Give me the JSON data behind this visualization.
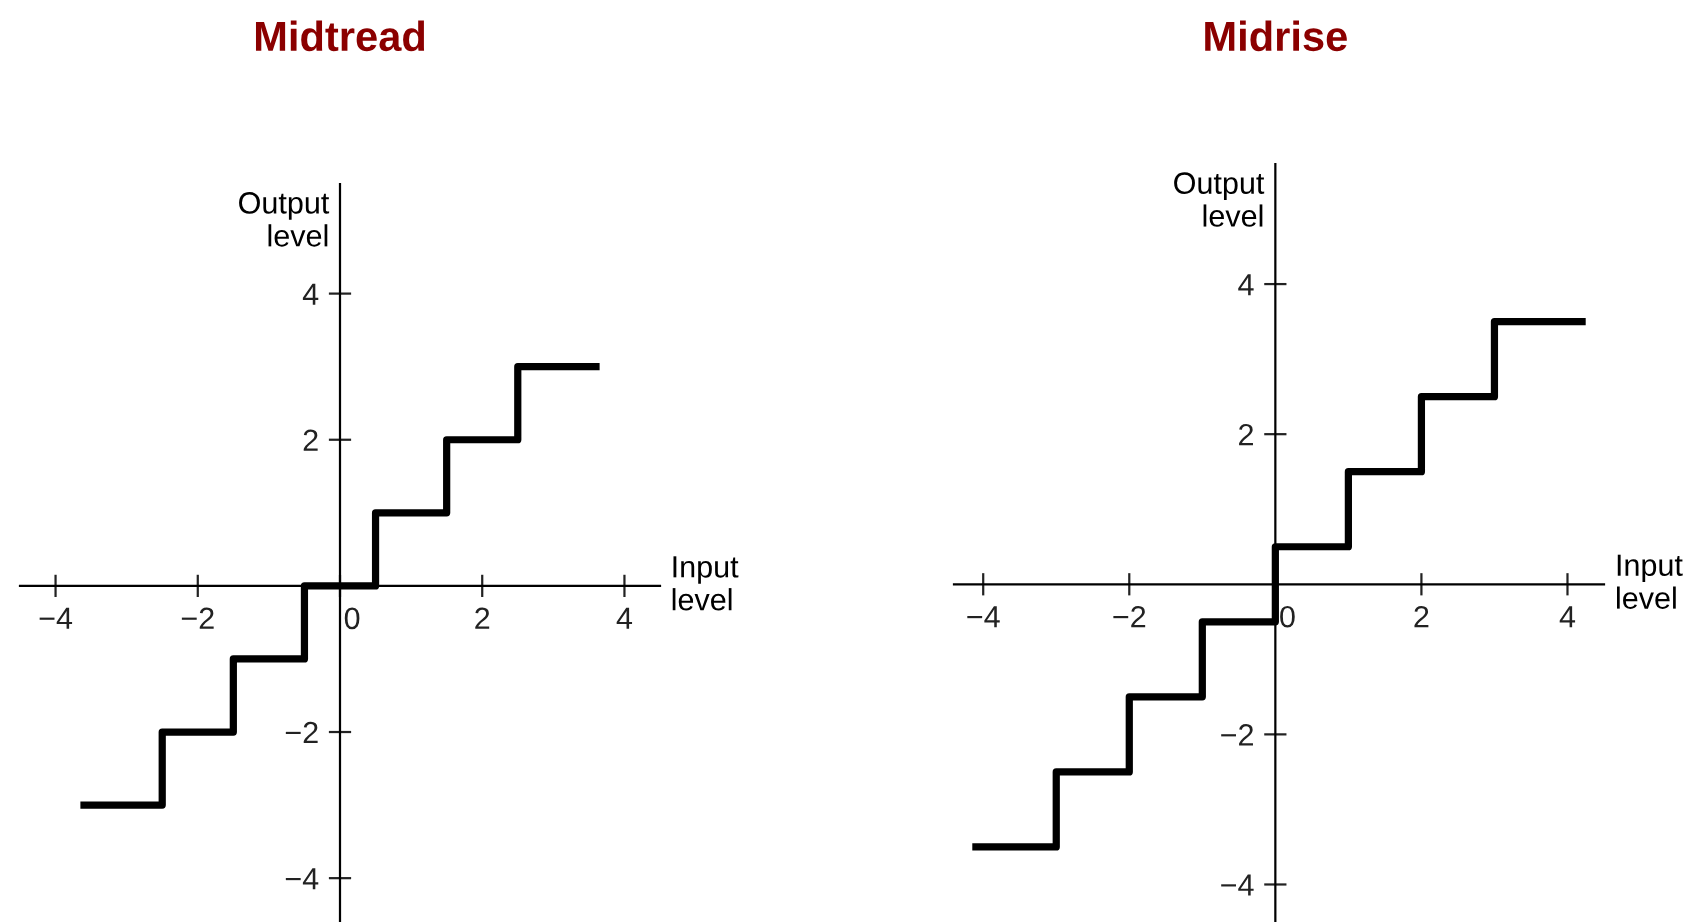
{
  "chart_data": [
    {
      "type": "step",
      "title": "Midtread",
      "xlabel": "Input\nlevel",
      "ylabel": "Output\nlevel",
      "xlim": [
        -4.5,
        4.5
      ],
      "ylim": [
        -4.6,
        5.5
      ],
      "xticks": [
        -4,
        -2,
        0,
        2,
        4
      ],
      "yticks": [
        -4,
        -2,
        2,
        4
      ],
      "grid": false,
      "legend": false,
      "series": [
        {
          "color": "#000000",
          "x": [
            -3.6,
            -2.5,
            -1.5,
            -0.5,
            0.5,
            1.5,
            2.5,
            3.6
          ],
          "values": [
            -3,
            -2,
            -1,
            0,
            1,
            2,
            3,
            3
          ]
        }
      ]
    },
    {
      "type": "step",
      "title": "Midrise",
      "xlabel": "Input\nlevel",
      "ylabel": "Output\nlevel",
      "xlim": [
        -4.4,
        4.5
      ],
      "ylim": [
        -4.5,
        5.6
      ],
      "xticks": [
        -4,
        -2,
        0,
        2,
        4
      ],
      "yticks": [
        -4,
        -2,
        2,
        4
      ],
      "grid": false,
      "legend": false,
      "series": [
        {
          "color": "#000000",
          "x": [
            -4.1,
            -3,
            -2,
            -1,
            0,
            1,
            2,
            3,
            4.2
          ],
          "values": [
            -3.5,
            -2.5,
            -1.5,
            -0.5,
            0.5,
            1.5,
            2.5,
            3.5,
            3.5
          ]
        }
      ]
    }
  ]
}
